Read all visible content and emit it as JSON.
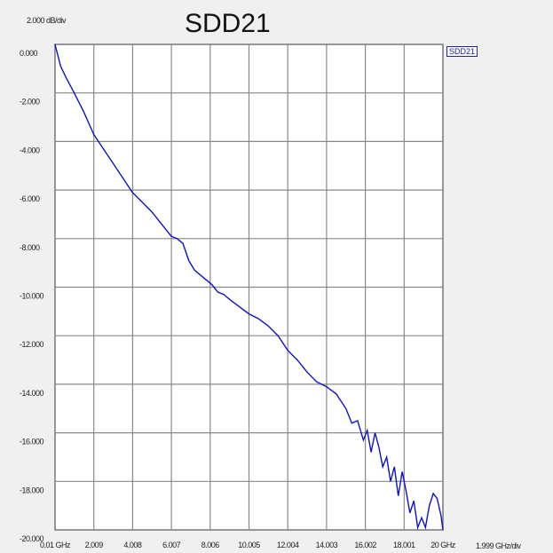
{
  "chart_data": {
    "type": "line",
    "title": "SDD21",
    "y_scale_label": "2.000 dB/div",
    "x_scale_label": "1.999 GHz/div",
    "legend": [
      "SDD21"
    ],
    "legend_placement": "top-right",
    "grid": true,
    "xlim": [
      0.01,
      20
    ],
    "ylim": [
      -20,
      0
    ],
    "x_tick_labels": [
      "0.01 GHz",
      "2.009",
      "4.008",
      "6.007",
      "8.006",
      "10.005",
      "12.004",
      "14.003",
      "16.002",
      "18.001",
      "20 GHz"
    ],
    "y_tick_labels": [
      "0.000",
      "-2.000",
      "-4.000",
      "-6.000",
      "-8.000",
      "-10.000",
      "-12.000",
      "-14.000",
      "-16.000",
      "-18.000",
      "-20.000"
    ],
    "series": [
      {
        "name": "SDD21",
        "color": "#1010c8",
        "x": [
          0.01,
          0.3,
          0.6,
          1,
          1.5,
          2,
          2.5,
          3,
          3.5,
          4,
          4.5,
          5,
          5.5,
          6,
          6.3,
          6.6,
          6.9,
          7.2,
          7.5,
          7.8,
          8.1,
          8.4,
          8.7,
          9,
          9.5,
          10,
          10.5,
          11,
          11.5,
          12,
          12.5,
          13,
          13.5,
          14,
          14.5,
          15,
          15.3,
          15.6,
          15.9,
          16.1,
          16.3,
          16.5,
          16.7,
          16.9,
          17.1,
          17.3,
          17.5,
          17.7,
          17.9,
          18.1,
          18.3,
          18.5,
          18.7,
          18.9,
          19.1,
          19.3,
          19.5,
          19.7,
          19.9,
          20
        ],
        "y": [
          0,
          -0.9,
          -1.4,
          -2.0,
          -2.8,
          -3.7,
          -4.3,
          -4.9,
          -5.5,
          -6.1,
          -6.5,
          -6.9,
          -7.4,
          -7.9,
          -8.0,
          -8.2,
          -8.9,
          -9.3,
          -9.5,
          -9.7,
          -9.9,
          -10.2,
          -10.3,
          -10.5,
          -10.8,
          -11.1,
          -11.3,
          -11.6,
          -12.0,
          -12.6,
          -13.0,
          -13.5,
          -13.9,
          -14.1,
          -14.4,
          -15.0,
          -15.6,
          -15.5,
          -16.3,
          -15.9,
          -16.8,
          -16.0,
          -16.6,
          -17.4,
          -17.0,
          -18.0,
          -17.4,
          -18.6,
          -17.6,
          -18.4,
          -19.3,
          -18.8,
          -19.9,
          -19.5,
          -19.9,
          -19.0,
          -18.5,
          -18.7,
          -19.4,
          -20.0
        ]
      }
    ]
  }
}
